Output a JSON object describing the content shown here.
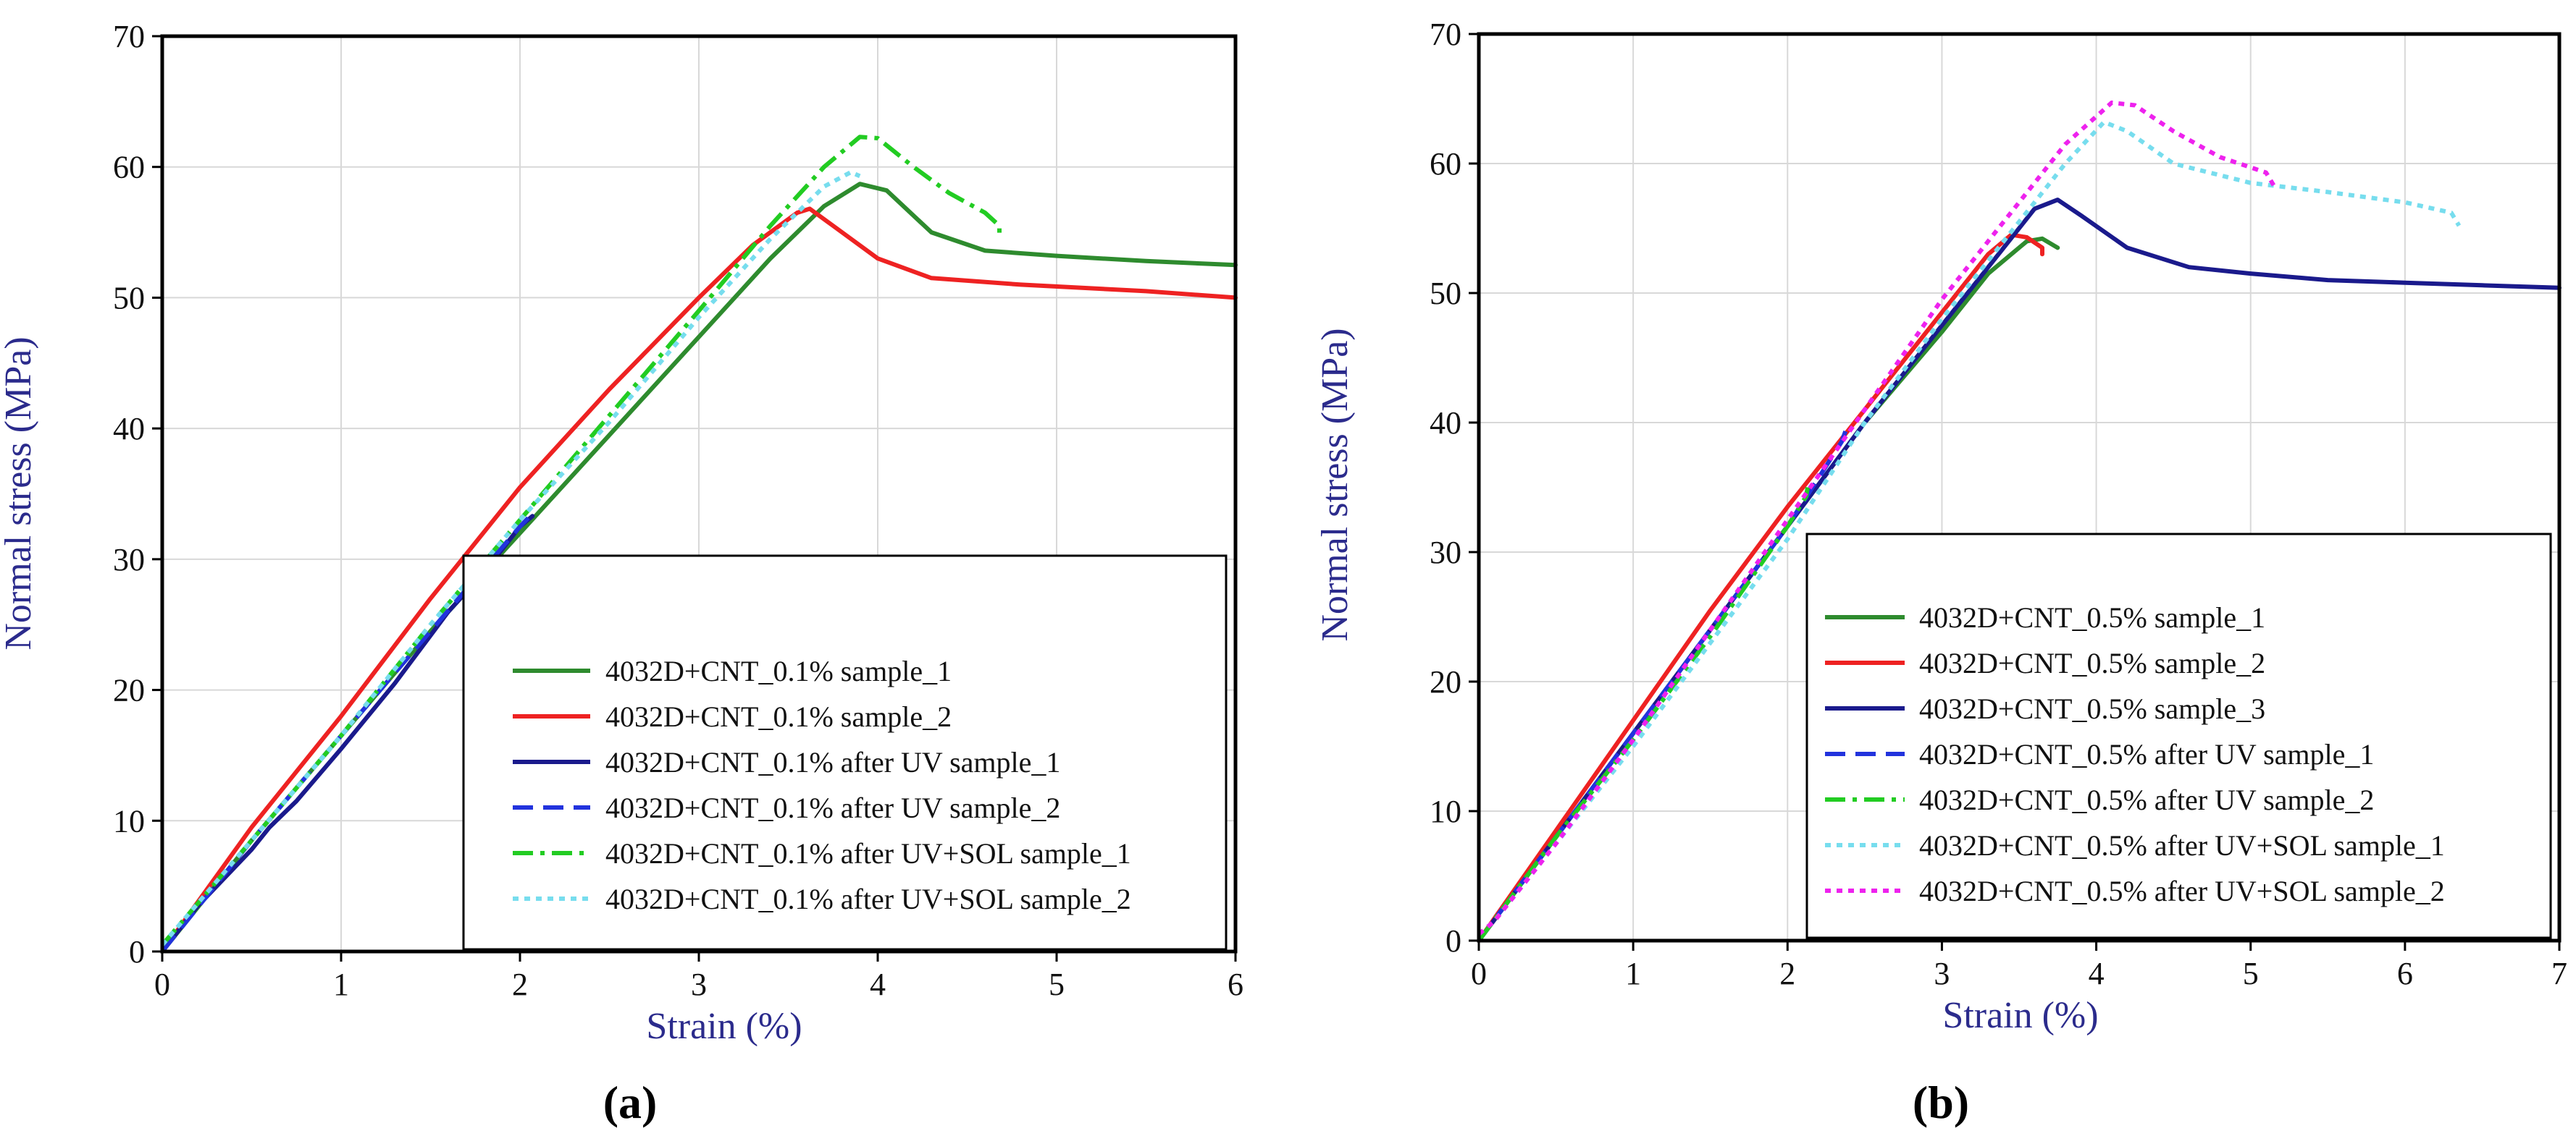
{
  "chart_data": [
    {
      "type": "line",
      "panel_label": "(a)",
      "xlabel": "Strain (%)",
      "ylabel": "Normal stress (MPa)",
      "xlim": [
        0,
        6
      ],
      "ylim": [
        0,
        70
      ],
      "xticks": [
        0,
        1,
        2,
        3,
        4,
        5,
        6
      ],
      "yticks": [
        0,
        10,
        20,
        30,
        40,
        50,
        60,
        70
      ],
      "grid": true,
      "legend_position": "bottom-right",
      "series": [
        {
          "name": "4032D+CNT_0.1%  sample_1",
          "color": "#2e8b2e",
          "dash": "solid",
          "points": [
            [
              0,
              0
            ],
            [
              0.5,
              8.5
            ],
            [
              1,
              16.5
            ],
            [
              1.5,
              24.5
            ],
            [
              2,
              32
            ],
            [
              2.5,
              39.5
            ],
            [
              3,
              47
            ],
            [
              3.4,
              53
            ],
            [
              3.7,
              57
            ],
            [
              3.9,
              58.7
            ],
            [
              4.05,
              58.2
            ],
            [
              4.3,
              55
            ],
            [
              4.6,
              53.6
            ],
            [
              5,
              53.2
            ],
            [
              5.5,
              52.8
            ],
            [
              6,
              52.5
            ]
          ]
        },
        {
          "name": "4032D+CNT_0.1% sample_2",
          "color": "#ee2222",
          "dash": "solid",
          "points": [
            [
              0,
              0
            ],
            [
              0.5,
              9.5
            ],
            [
              1,
              18
            ],
            [
              1.5,
              27
            ],
            [
              2,
              35.5
            ],
            [
              2.5,
              43
            ],
            [
              3,
              50
            ],
            [
              3.3,
              54
            ],
            [
              3.55,
              56.5
            ],
            [
              3.62,
              56.8
            ],
            [
              3.75,
              55.5
            ],
            [
              4,
              53
            ],
            [
              4.3,
              51.5
            ],
            [
              4.8,
              51
            ],
            [
              5.5,
              50.5
            ],
            [
              6,
              50
            ]
          ]
        },
        {
          "name": "4032D+CNT_0.1% after UV sample_1",
          "color": "#1a1a8c",
          "dash": "solid",
          "points": [
            [
              0,
              0
            ],
            [
              0.2,
              3.5
            ],
            [
              0.5,
              7.8
            ],
            [
              0.6,
              9.5
            ],
            [
              0.75,
              11.5
            ],
            [
              1,
              15.5
            ],
            [
              1.3,
              20.5
            ],
            [
              1.6,
              26
            ],
            [
              1.8,
              29
            ],
            [
              2,
              32.5
            ],
            [
              2.07,
              33.3
            ]
          ]
        },
        {
          "name": "4032D+CNT_0.1% after UV sample_2",
          "color": "#2233dd",
          "dash": "dashed",
          "points": [
            [
              0,
              0
            ],
            [
              0.5,
              8.5
            ],
            [
              1,
              16.5
            ],
            [
              1.5,
              24.5
            ],
            [
              2,
              32.5
            ],
            [
              2.07,
              33.5
            ]
          ]
        },
        {
          "name": "4032D+CNT_0.1% after UV+SOL sample_1",
          "color": "#22cc22",
          "dash": "dashdot",
          "points": [
            [
              0,
              0.5
            ],
            [
              0.5,
              8.5
            ],
            [
              1,
              16.5
            ],
            [
              1.5,
              25
            ],
            [
              2,
              33
            ],
            [
              2.5,
              41
            ],
            [
              3,
              49
            ],
            [
              3.4,
              55.5
            ],
            [
              3.7,
              60
            ],
            [
              3.9,
              62.3
            ],
            [
              4,
              62.2
            ],
            [
              4.2,
              60
            ],
            [
              4.4,
              58
            ],
            [
              4.6,
              56.5
            ],
            [
              4.68,
              55.5
            ],
            [
              4.68,
              54.8
            ]
          ]
        },
        {
          "name": "4032D+CNT_0.1% after UV+SOL sample_2",
          "color": "#77ddee",
          "dash": "dotted",
          "points": [
            [
              0,
              0.5
            ],
            [
              0.5,
              8.5
            ],
            [
              1,
              16.5
            ],
            [
              1.5,
              25
            ],
            [
              2,
              33
            ],
            [
              2.5,
              40.5
            ],
            [
              3,
              48.5
            ],
            [
              3.4,
              54.5
            ],
            [
              3.7,
              58.5
            ],
            [
              3.85,
              59.6
            ],
            [
              3.9,
              59.3
            ]
          ]
        }
      ]
    },
    {
      "type": "line",
      "panel_label": "(b)",
      "xlabel": "Strain (%)",
      "ylabel": "Normal stress (MPa)",
      "xlim": [
        0,
        7
      ],
      "ylim": [
        0,
        70
      ],
      "xticks": [
        0,
        1,
        2,
        3,
        4,
        5,
        6,
        7
      ],
      "yticks": [
        0,
        10,
        20,
        30,
        40,
        50,
        60,
        70
      ],
      "grid": true,
      "legend_position": "bottom-right",
      "series": [
        {
          "name": "4032D+CNT_0.5%  sample_1",
          "color": "#2e8b2e",
          "dash": "solid",
          "points": [
            [
              0,
              0
            ],
            [
              0.5,
              8
            ],
            [
              1,
              16
            ],
            [
              1.5,
              24
            ],
            [
              2,
              32
            ],
            [
              2.5,
              40
            ],
            [
              3,
              47
            ],
            [
              3.3,
              51.5
            ],
            [
              3.55,
              54
            ],
            [
              3.65,
              54.2
            ],
            [
              3.75,
              53.5
            ]
          ]
        },
        {
          "name": "4032D+CNT_0.5% sample_2",
          "color": "#ee2222",
          "dash": "solid",
          "points": [
            [
              0,
              0
            ],
            [
              0.5,
              8.5
            ],
            [
              1,
              17
            ],
            [
              1.5,
              25.5
            ],
            [
              2,
              33.5
            ],
            [
              2.5,
              41
            ],
            [
              3,
              48.5
            ],
            [
              3.3,
              53
            ],
            [
              3.45,
              54.5
            ],
            [
              3.55,
              54.3
            ],
            [
              3.65,
              53.5
            ],
            [
              3.65,
              53
            ]
          ]
        },
        {
          "name": "4032D+CNT_0.5% sample_3",
          "color": "#1a1a8c",
          "dash": "solid",
          "points": [
            [
              0,
              0
            ],
            [
              0.5,
              8
            ],
            [
              1,
              16
            ],
            [
              1.5,
              24
            ],
            [
              2,
              32
            ],
            [
              2.5,
              40
            ],
            [
              3,
              47.5
            ],
            [
              3.4,
              53.5
            ],
            [
              3.6,
              56.5
            ],
            [
              3.75,
              57.2
            ],
            [
              3.9,
              56
            ],
            [
              4.2,
              53.5
            ],
            [
              4.6,
              52
            ],
            [
              5,
              51.5
            ],
            [
              5.5,
              51
            ],
            [
              6,
              50.8
            ],
            [
              6.5,
              50.6
            ],
            [
              7,
              50.4
            ]
          ]
        },
        {
          "name": "4032D+CNT_0.5% after UV sample_1",
          "color": "#2233dd",
          "dash": "dashed",
          "points": [
            [
              0,
              0
            ],
            [
              0.5,
              8
            ],
            [
              1,
              16
            ],
            [
              1.5,
              24
            ],
            [
              2,
              32
            ],
            [
              2.35,
              38.5
            ],
            [
              2.38,
              39.5
            ]
          ]
        },
        {
          "name": "4032D+CNT_0.5% after UV sample_2",
          "color": "#22cc22",
          "dash": "dashdot",
          "points": [
            [
              0,
              0
            ],
            [
              0.5,
              8
            ],
            [
              1,
              15.5
            ],
            [
              1.5,
              23.5
            ],
            [
              2,
              32
            ],
            [
              2.12,
              34.3
            ],
            [
              2.13,
              35
            ]
          ]
        },
        {
          "name": "4032D+CNT_0.5% after UV+SOL sample_1",
          "color": "#77ddee",
          "dash": "dotted",
          "points": [
            [
              0,
              0.5
            ],
            [
              0.1,
              1.5
            ],
            [
              0.5,
              7.5
            ],
            [
              1,
              15
            ],
            [
              1.5,
              23
            ],
            [
              2,
              31
            ],
            [
              2.5,
              40
            ],
            [
              3,
              48
            ],
            [
              3.5,
              55.5
            ],
            [
              3.8,
              60
            ],
            [
              4.05,
              63.2
            ],
            [
              4.2,
              62.5
            ],
            [
              4.5,
              60
            ],
            [
              5,
              58.5
            ],
            [
              5.5,
              57.8
            ],
            [
              6,
              57
            ],
            [
              6.3,
              56.2
            ],
            [
              6.35,
              55.2
            ]
          ]
        },
        {
          "name": "4032D+CNT_0.5% after UV+SOL sample_2",
          "color": "#ee22ee",
          "dash": "dotted",
          "points": [
            [
              0,
              0.5
            ],
            [
              0.1,
              1.5
            ],
            [
              0.5,
              7.5
            ],
            [
              1,
              15.5
            ],
            [
              1.5,
              24
            ],
            [
              2,
              32.5
            ],
            [
              2.5,
              41
            ],
            [
              3,
              49.5
            ],
            [
              3.5,
              57
            ],
            [
              3.8,
              61.5
            ],
            [
              4.1,
              64.7
            ],
            [
              4.25,
              64.5
            ],
            [
              4.5,
              62.5
            ],
            [
              4.8,
              60.5
            ],
            [
              5.1,
              59.3
            ],
            [
              5.15,
              58.3
            ]
          ]
        }
      ]
    }
  ]
}
